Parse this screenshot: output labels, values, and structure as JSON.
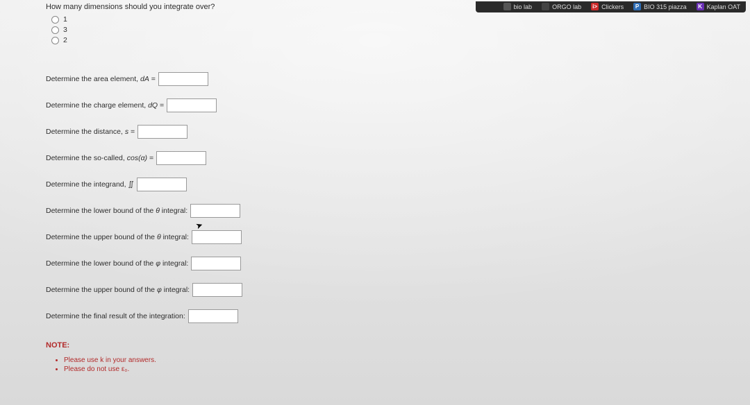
{
  "bookmarks": [
    {
      "label": "bio lab",
      "icon_bg": "#555555",
      "icon_fg": "#ffffff",
      "icon_glyph": " "
    },
    {
      "label": "ORGO lab",
      "icon_bg": "#444444",
      "icon_fg": "#ffffff",
      "icon_glyph": " "
    },
    {
      "label": "Clickers",
      "icon_bg": "#cc2b2b",
      "icon_fg": "#ffffff",
      "icon_glyph": "i>"
    },
    {
      "label": "BIO 315 piazza",
      "icon_bg": "#2e6db5",
      "icon_fg": "#ffffff",
      "icon_glyph": "P"
    },
    {
      "label": "Kaplan OAT",
      "icon_bg": "#6a2fb5",
      "icon_fg": "#ffffff",
      "icon_glyph": "K"
    }
  ],
  "question": {
    "prompt": "How many dimensions should you integrate over?",
    "options": [
      {
        "label": "1"
      },
      {
        "label": "3"
      },
      {
        "label": "2"
      }
    ]
  },
  "fills": [
    {
      "label_html": "Determine the area element, <span class='ital'>dA</span> ="
    },
    {
      "label_html": "Determine the charge element, <span class='ital'>dQ</span> ="
    },
    {
      "label_html": "Determine the distance, <span class='ital'>s</span> ="
    },
    {
      "label_html": "Determine the so-called, <span class='ital'>cos(α)</span> ="
    },
    {
      "label_html": "Determine the integrand, ∬"
    },
    {
      "label_html": "Determine the lower bound of the <span class='ital'>θ</span> integral:"
    },
    {
      "label_html": "Determine the upper bound of the <span class='ital'>θ</span> integral:"
    },
    {
      "label_html": "Determine the lower bound of the <span class='ital'>φ</span> integral:"
    },
    {
      "label_html": "Determine the upper bound of the <span class='ital'>φ</span> integral:"
    },
    {
      "label_html": "Determine the final result of the integration:"
    }
  ],
  "note": {
    "title": "NOTE:",
    "items": [
      "Please use k in your answers.",
      "Please do not use ε₀."
    ]
  },
  "colors": {
    "page_bg": "#e8e8e8",
    "text": "#2d2d2d",
    "note_red": "#b22a2a",
    "input_border": "#999999",
    "bookmark_bar_bg": "#2a2a2a",
    "bookmark_text": "#dddddd"
  }
}
